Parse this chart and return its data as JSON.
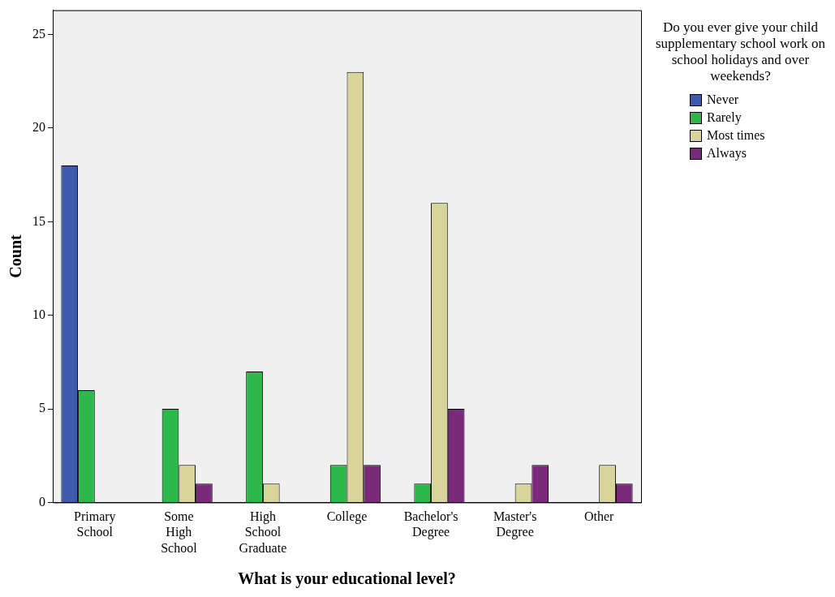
{
  "chart_data": {
    "type": "bar",
    "xlabel": "What is your educational level?",
    "ylabel": "Count",
    "legend_title": "Do you ever give your child supplementary school work on school holidays and over weekends?",
    "categories": [
      "Primary School",
      "Some High School",
      "High School Graduate",
      "College",
      "Bachelor's Degree",
      "Master's Degree",
      "Other"
    ],
    "series": [
      {
        "name": "Never",
        "color": "#3d5aaf",
        "values": [
          18,
          null,
          null,
          null,
          null,
          null,
          null
        ]
      },
      {
        "name": "Rarely",
        "color": "#2cb84a",
        "values": [
          6,
          5,
          7,
          2,
          1,
          null,
          null
        ]
      },
      {
        "name": "Most times",
        "color": "#d9d39c",
        "values": [
          null,
          2,
          1,
          23,
          16,
          1,
          2
        ]
      },
      {
        "name": "Always",
        "color": "#7b2a7b",
        "values": [
          null,
          1,
          null,
          2,
          5,
          2,
          1
        ]
      }
    ],
    "ylim": [
      0,
      26.3
    ],
    "yticks": [
      0,
      5,
      10,
      15,
      20,
      25
    ],
    "grid": false,
    "legend": "right"
  }
}
